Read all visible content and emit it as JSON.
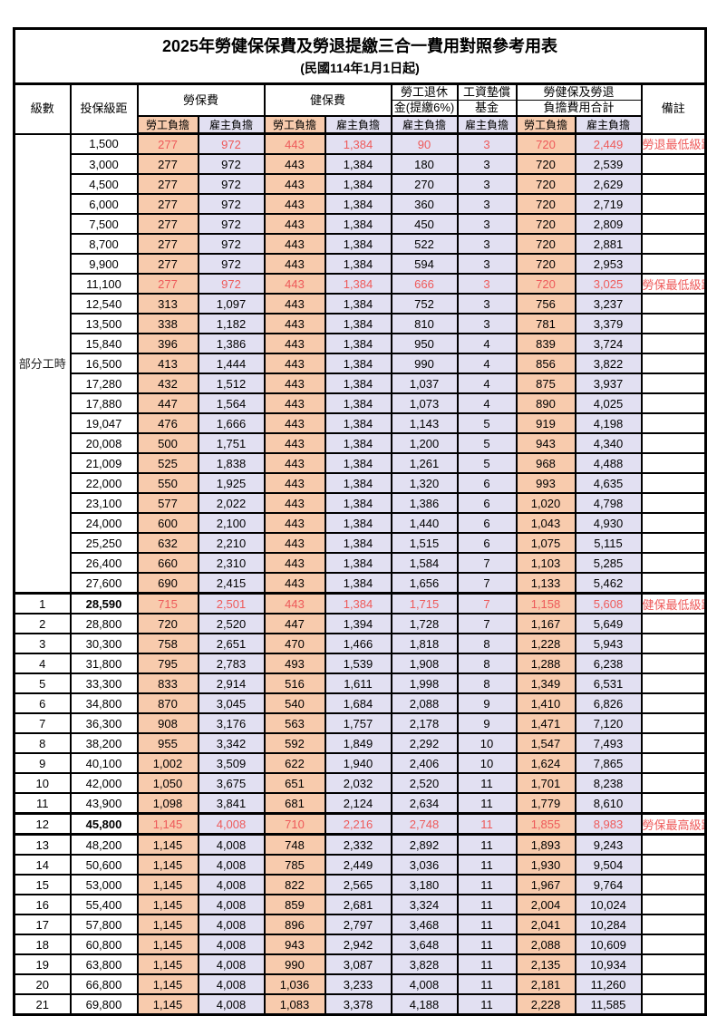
{
  "title": {
    "line1": "2025年勞健保保費及勞退提繳三合一費用對照參考用表",
    "line2": "(民國114年1月1日起)"
  },
  "colors": {
    "employee_bg": "#F8CBAD",
    "employer_bg": "#E2E0F2",
    "highlight_text": "#EE5A5A",
    "border": "#000000"
  },
  "table": {
    "header": {
      "grade": "級數",
      "bracket": "投保級距",
      "labor_fee": "勞保費",
      "health_fee": "健保費",
      "pension_line1": "勞工退休",
      "pension_line2": "金(提繳6%)",
      "fund_line1": "工資墊償",
      "fund_line2": "基金",
      "total_line1": "勞健保及勞退",
      "total_line2": "負擔費用合計",
      "employee_share": "勞工負擔",
      "employer_share": "雇主負擔",
      "note": "備註"
    },
    "part_time_label": "部分工時",
    "part_time_span": 23,
    "rows": [
      {
        "bracket": "1,500",
        "values": [
          "277",
          "972",
          "443",
          "1,384",
          "90",
          "3",
          "720",
          "2,449"
        ],
        "note": "勞退最低級距",
        "red": true
      },
      {
        "bracket": "3,000",
        "values": [
          "277",
          "972",
          "443",
          "1,384",
          "180",
          "3",
          "720",
          "2,539"
        ]
      },
      {
        "bracket": "4,500",
        "values": [
          "277",
          "972",
          "443",
          "1,384",
          "270",
          "3",
          "720",
          "2,629"
        ]
      },
      {
        "bracket": "6,000",
        "values": [
          "277",
          "972",
          "443",
          "1,384",
          "360",
          "3",
          "720",
          "2,719"
        ]
      },
      {
        "bracket": "7,500",
        "values": [
          "277",
          "972",
          "443",
          "1,384",
          "450",
          "3",
          "720",
          "2,809"
        ]
      },
      {
        "bracket": "8,700",
        "values": [
          "277",
          "972",
          "443",
          "1,384",
          "522",
          "3",
          "720",
          "2,881"
        ]
      },
      {
        "bracket": "9,900",
        "values": [
          "277",
          "972",
          "443",
          "1,384",
          "594",
          "3",
          "720",
          "2,953"
        ]
      },
      {
        "bracket": "11,100",
        "values": [
          "277",
          "972",
          "443",
          "1,384",
          "666",
          "3",
          "720",
          "3,025"
        ],
        "note": "勞保最低級距",
        "red": true
      },
      {
        "bracket": "12,540",
        "values": [
          "313",
          "1,097",
          "443",
          "1,384",
          "752",
          "3",
          "756",
          "3,237"
        ]
      },
      {
        "bracket": "13,500",
        "values": [
          "338",
          "1,182",
          "443",
          "1,384",
          "810",
          "3",
          "781",
          "3,379"
        ]
      },
      {
        "bracket": "15,840",
        "values": [
          "396",
          "1,386",
          "443",
          "1,384",
          "950",
          "4",
          "839",
          "3,724"
        ]
      },
      {
        "bracket": "16,500",
        "values": [
          "413",
          "1,444",
          "443",
          "1,384",
          "990",
          "4",
          "856",
          "3,822"
        ]
      },
      {
        "bracket": "17,280",
        "values": [
          "432",
          "1,512",
          "443",
          "1,384",
          "1,037",
          "4",
          "875",
          "3,937"
        ]
      },
      {
        "bracket": "17,880",
        "values": [
          "447",
          "1,564",
          "443",
          "1,384",
          "1,073",
          "4",
          "890",
          "4,025"
        ]
      },
      {
        "bracket": "19,047",
        "values": [
          "476",
          "1,666",
          "443",
          "1,384",
          "1,143",
          "5",
          "919",
          "4,198"
        ]
      },
      {
        "bracket": "20,008",
        "values": [
          "500",
          "1,751",
          "443",
          "1,384",
          "1,200",
          "5",
          "943",
          "4,340"
        ]
      },
      {
        "bracket": "21,009",
        "values": [
          "525",
          "1,838",
          "443",
          "1,384",
          "1,261",
          "5",
          "968",
          "4,488"
        ]
      },
      {
        "bracket": "22,000",
        "values": [
          "550",
          "1,925",
          "443",
          "1,384",
          "1,320",
          "6",
          "993",
          "4,635"
        ]
      },
      {
        "bracket": "23,100",
        "values": [
          "577",
          "2,022",
          "443",
          "1,384",
          "1,386",
          "6",
          "1,020",
          "4,798"
        ]
      },
      {
        "bracket": "24,000",
        "values": [
          "600",
          "2,100",
          "443",
          "1,384",
          "1,440",
          "6",
          "1,043",
          "4,930"
        ]
      },
      {
        "bracket": "25,250",
        "values": [
          "632",
          "2,210",
          "443",
          "1,384",
          "1,515",
          "6",
          "1,075",
          "5,115"
        ]
      },
      {
        "bracket": "26,400",
        "values": [
          "660",
          "2,310",
          "443",
          "1,384",
          "1,584",
          "7",
          "1,103",
          "5,285"
        ]
      },
      {
        "bracket": "27,600",
        "values": [
          "690",
          "2,415",
          "443",
          "1,384",
          "1,656",
          "7",
          "1,133",
          "5,462"
        ]
      },
      {
        "grade": "1",
        "bracket": "28,590",
        "values": [
          "715",
          "2,501",
          "443",
          "1,384",
          "1,715",
          "7",
          "1,158",
          "5,608"
        ],
        "note": "健保最低級距",
        "red": true,
        "thick_top": true,
        "bold_bracket": true
      },
      {
        "grade": "2",
        "bracket": "28,800",
        "values": [
          "720",
          "2,520",
          "447",
          "1,394",
          "1,728",
          "7",
          "1,167",
          "5,649"
        ]
      },
      {
        "grade": "3",
        "bracket": "30,300",
        "values": [
          "758",
          "2,651",
          "470",
          "1,466",
          "1,818",
          "8",
          "1,228",
          "5,943"
        ]
      },
      {
        "grade": "4",
        "bracket": "31,800",
        "values": [
          "795",
          "2,783",
          "493",
          "1,539",
          "1,908",
          "8",
          "1,288",
          "6,238"
        ]
      },
      {
        "grade": "5",
        "bracket": "33,300",
        "values": [
          "833",
          "2,914",
          "516",
          "1,611",
          "1,998",
          "8",
          "1,349",
          "6,531"
        ]
      },
      {
        "grade": "6",
        "bracket": "34,800",
        "values": [
          "870",
          "3,045",
          "540",
          "1,684",
          "2,088",
          "9",
          "1,410",
          "6,826"
        ]
      },
      {
        "grade": "7",
        "bracket": "36,300",
        "values": [
          "908",
          "3,176",
          "563",
          "1,757",
          "2,178",
          "9",
          "1,471",
          "7,120"
        ]
      },
      {
        "grade": "8",
        "bracket": "38,200",
        "values": [
          "955",
          "3,342",
          "592",
          "1,849",
          "2,292",
          "10",
          "1,547",
          "7,493"
        ]
      },
      {
        "grade": "9",
        "bracket": "40,100",
        "values": [
          "1,002",
          "3,509",
          "622",
          "1,940",
          "2,406",
          "10",
          "1,624",
          "7,865"
        ]
      },
      {
        "grade": "10",
        "bracket": "42,000",
        "values": [
          "1,050",
          "3,675",
          "651",
          "2,032",
          "2,520",
          "11",
          "1,701",
          "8,238"
        ]
      },
      {
        "grade": "11",
        "bracket": "43,900",
        "values": [
          "1,098",
          "3,841",
          "681",
          "2,124",
          "2,634",
          "11",
          "1,779",
          "8,610"
        ]
      },
      {
        "grade": "12",
        "bracket": "45,800",
        "values": [
          "1,145",
          "4,008",
          "710",
          "2,216",
          "2,748",
          "11",
          "1,855",
          "8,983"
        ],
        "note": "勞保最高級距",
        "red": true,
        "thick_top": true,
        "thick_bottom": true,
        "bold_bracket": true
      },
      {
        "grade": "13",
        "bracket": "48,200",
        "values": [
          "1,145",
          "4,008",
          "748",
          "2,332",
          "2,892",
          "11",
          "1,893",
          "9,243"
        ]
      },
      {
        "grade": "14",
        "bracket": "50,600",
        "values": [
          "1,145",
          "4,008",
          "785",
          "2,449",
          "3,036",
          "11",
          "1,930",
          "9,504"
        ]
      },
      {
        "grade": "15",
        "bracket": "53,000",
        "values": [
          "1,145",
          "4,008",
          "822",
          "2,565",
          "3,180",
          "11",
          "1,967",
          "9,764"
        ]
      },
      {
        "grade": "16",
        "bracket": "55,400",
        "values": [
          "1,145",
          "4,008",
          "859",
          "2,681",
          "3,324",
          "11",
          "2,004",
          "10,024"
        ]
      },
      {
        "grade": "17",
        "bracket": "57,800",
        "values": [
          "1,145",
          "4,008",
          "896",
          "2,797",
          "3,468",
          "11",
          "2,041",
          "10,284"
        ]
      },
      {
        "grade": "18",
        "bracket": "60,800",
        "values": [
          "1,145",
          "4,008",
          "943",
          "2,942",
          "3,648",
          "11",
          "2,088",
          "10,609"
        ]
      },
      {
        "grade": "19",
        "bracket": "63,800",
        "values": [
          "1,145",
          "4,008",
          "990",
          "3,087",
          "3,828",
          "11",
          "2,135",
          "10,934"
        ]
      },
      {
        "grade": "20",
        "bracket": "66,800",
        "values": [
          "1,145",
          "4,008",
          "1,036",
          "3,233",
          "4,008",
          "11",
          "2,181",
          "11,260"
        ]
      },
      {
        "grade": "21",
        "bracket": "69,800",
        "values": [
          "1,145",
          "4,008",
          "1,083",
          "3,378",
          "4,188",
          "11",
          "2,228",
          "11,585"
        ]
      }
    ]
  }
}
